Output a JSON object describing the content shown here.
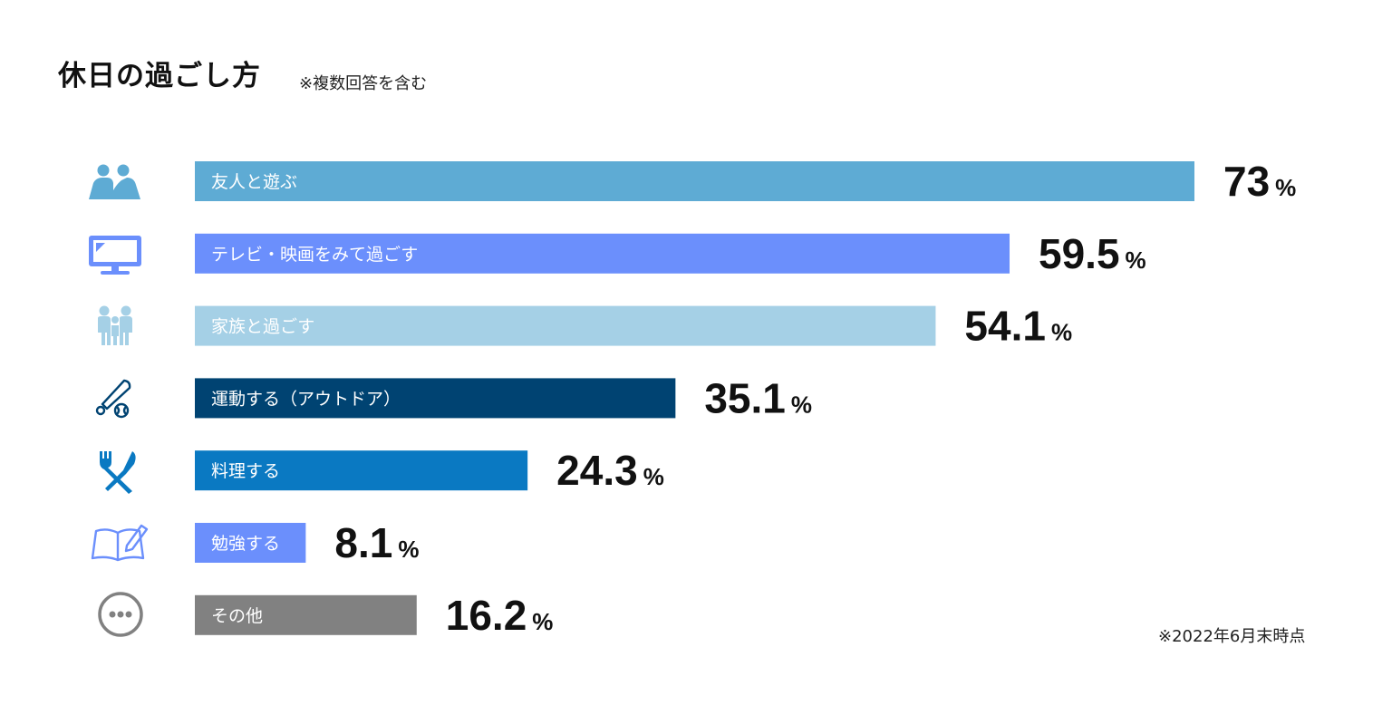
{
  "header": {
    "title": "休日の過ごし方",
    "note": "※複数回答を含む"
  },
  "footnote": "※2022年6月末時点",
  "chart_data": {
    "type": "bar",
    "orientation": "horizontal",
    "title": "休日の過ごし方",
    "categories": [
      "友人と遊ぶ",
      "テレビ・映画をみて過ごす",
      "家族と過ごす",
      "運動する（アウトドア）",
      "料理する",
      "勉強する",
      "その他"
    ],
    "values": [
      73,
      59.5,
      54.1,
      35.1,
      24.3,
      8.1,
      16.2
    ],
    "value_labels": [
      "73",
      "59.5",
      "54.1",
      "35.1",
      "24.3",
      "8.1",
      "16.2"
    ],
    "unit": "%",
    "xlim": [
      0,
      73
    ],
    "colors": [
      "#5eabd4",
      "#6b8ffc",
      "#a5d0e6",
      "#004372",
      "#0a79c2",
      "#6b8ffc",
      "#818181"
    ],
    "icons": [
      "friends-icon",
      "tv-icon",
      "family-icon",
      "baseball-icon",
      "utensils-icon",
      "book-icon",
      "more-icon"
    ],
    "grid": false,
    "legend": "none"
  }
}
